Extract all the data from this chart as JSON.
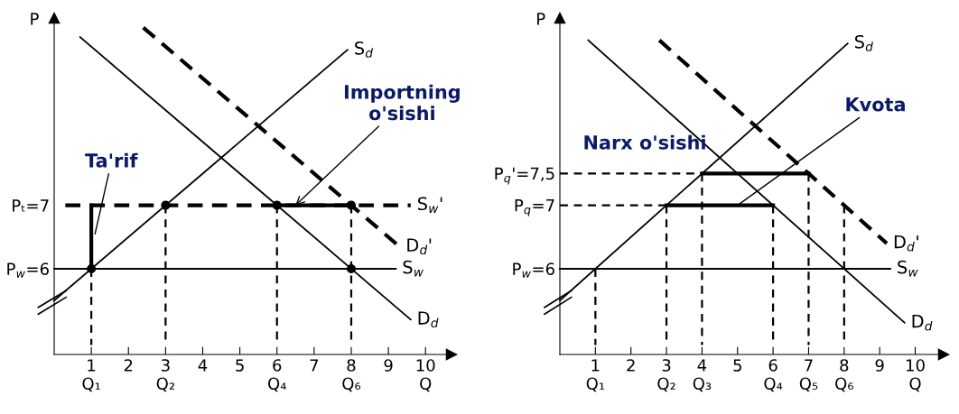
{
  "chart_data": [
    {
      "type": "line",
      "ylabel": "P",
      "xlim": [
        0,
        10.7
      ],
      "ylim": [
        4.65,
        9.95
      ],
      "xticks": [
        {
          "value": 1,
          "label": "1\nQ₁"
        },
        2,
        {
          "value": 3,
          "label": "3\nQ₂"
        },
        4,
        5,
        {
          "value": 6,
          "label": "6\nQ₄"
        },
        7,
        {
          "value": 8,
          "label": "8\nQ₆"
        },
        9,
        {
          "value": 10,
          "label": "10\nQ"
        }
      ],
      "yticks": [
        {
          "value": 6,
          "label": "P$_{w}$=6"
        },
        {
          "value": 7,
          "label": "Pₜ=7"
        }
      ],
      "grid": false,
      "legend": false,
      "series": [
        {
          "name": "S$_{d}$",
          "color": "#000000",
          "line_style": "solid",
          "x": [
            0,
            7.9
          ],
          "values": [
            5.5,
            9.45
          ]
        },
        {
          "name": "D$_{d}$",
          "color": "#000000",
          "line_style": "solid",
          "x": [
            0.7,
            9.6
          ],
          "values": [
            9.65,
            5.2
          ]
        },
        {
          "name": "D$_{d}$'",
          "color": "#000000",
          "line_style": "dashed",
          "x": [
            2.4,
            9.3
          ],
          "values": [
            9.8,
            6.35
          ]
        },
        {
          "name": "S$_{w}$",
          "color": "#000000",
          "line_style": "solid",
          "x": [
            0,
            9.2
          ],
          "values": [
            6,
            6
          ]
        },
        {
          "name": "S$_{w}$'",
          "color": "#000000",
          "line_style": "dashed",
          "x": [
            0.3,
            9.6
          ],
          "values": [
            7,
            7
          ]
        },
        {
          "color": "#000000",
          "line_style": "dashed",
          "x": [
            1,
            1
          ],
          "values": [
            6,
            4.8
          ]
        },
        {
          "color": "#000000",
          "line_style": "dashed",
          "x": [
            3,
            3
          ],
          "values": [
            7,
            4.8
          ]
        },
        {
          "color": "#000000",
          "line_style": "dashed",
          "x": [
            6,
            6
          ],
          "values": [
            7,
            4.8
          ]
        },
        {
          "color": "#000000",
          "line_style": "dashed",
          "x": [
            8,
            8
          ],
          "values": [
            7,
            4.8
          ]
        },
        {
          "color": "#000000",
          "line_style": "solid",
          "x": [
            1,
            1
          ],
          "values": [
            6,
            7
          ]
        },
        {
          "color": "#000000",
          "line_style": "solid",
          "x": [
            6,
            8
          ],
          "values": [
            7,
            7
          ]
        },
        {
          "type": "scatter",
          "color": "#000000",
          "marker": "circle",
          "x": [
            1,
            3,
            6,
            8,
            8
          ],
          "values": [
            6,
            7,
            7,
            7,
            6
          ]
        }
      ],
      "annotations": [
        {
          "text": "Ta'rif",
          "x": 1.1,
          "y": 6.55
        },
        {
          "text": "Importning\no'sishi",
          "x": 6.5,
          "y": 7
        }
      ]
    },
    {
      "type": "line",
      "ylabel": "P",
      "xlim": [
        0,
        10.8
      ],
      "ylim": [
        4.65,
        9.95
      ],
      "xticks": [
        {
          "value": 1,
          "label": "1\nQ₁"
        },
        2,
        {
          "value": 3,
          "label": "3\nQ₂"
        },
        {
          "value": 4,
          "label": "4\nQ₃"
        },
        5,
        {
          "value": 6,
          "label": "6\nQ₄"
        },
        {
          "value": 7,
          "label": "7\nQ₅"
        },
        {
          "value": 8,
          "label": "8\nQ₆"
        },
        9,
        {
          "value": 10,
          "label": "10\nQ"
        }
      ],
      "yticks": [
        {
          "value": 6,
          "label": "P$_{w}$=6"
        },
        {
          "value": 7,
          "label": "P$_{q}$=7"
        },
        {
          "value": 7.5,
          "label": "P$_{q}$'=7,5"
        }
      ],
      "grid": false,
      "legend": false,
      "series": [
        {
          "name": "S$_{d}$",
          "color": "#000000",
          "line_style": "solid",
          "x": [
            0,
            8.1
          ],
          "values": [
            5.5,
            9.55
          ]
        },
        {
          "name": "D$_{d}$",
          "color": "#000000",
          "line_style": "solid",
          "x": [
            0.8,
            9.7
          ],
          "values": [
            9.6,
            5.15
          ]
        },
        {
          "name": "D$_{d}$'",
          "color": "#000000",
          "line_style": "dashed",
          "x": [
            2.8,
            9.2
          ],
          "values": [
            9.6,
            6.4
          ]
        },
        {
          "name": "S$_{w}$",
          "color": "#000000",
          "line_style": "solid",
          "x": [
            0,
            9.3
          ],
          "values": [
            6,
            6
          ]
        },
        {
          "color": "#000000",
          "line_style": "dashed",
          "x": [
            0,
            3
          ],
          "values": [
            7,
            7
          ]
        },
        {
          "color": "#000000",
          "line_style": "dashed",
          "x": [
            0,
            4
          ],
          "values": [
            7.5,
            7.5
          ]
        },
        {
          "color": "#000000",
          "line_style": "solid",
          "x": [
            3,
            6
          ],
          "values": [
            7,
            7
          ]
        },
        {
          "color": "#000000",
          "line_style": "solid",
          "x": [
            4,
            7
          ],
          "values": [
            7.5,
            7.5
          ]
        },
        {
          "color": "#000000",
          "line_style": "dashed",
          "x": [
            1,
            1
          ],
          "values": [
            6,
            4.8
          ]
        },
        {
          "color": "#000000",
          "line_style": "dashed",
          "x": [
            3,
            3
          ],
          "values": [
            7,
            4.8
          ]
        },
        {
          "color": "#000000",
          "line_style": "dashed",
          "x": [
            4,
            4
          ],
          "values": [
            7.5,
            4.8
          ]
        },
        {
          "color": "#000000",
          "line_style": "dashed",
          "x": [
            6,
            6
          ],
          "values": [
            7,
            4.8
          ]
        },
        {
          "color": "#000000",
          "line_style": "dashed",
          "x": [
            7,
            7
          ],
          "values": [
            7.5,
            4.8
          ]
        },
        {
          "color": "#000000",
          "line_style": "dashed",
          "x": [
            8,
            8
          ],
          "values": [
            7,
            4.8
          ]
        }
      ],
      "annotations": [
        "Narx o'sishi",
        {
          "text": "Kvota",
          "x": 5,
          "y": 7
        }
      ]
    }
  ]
}
